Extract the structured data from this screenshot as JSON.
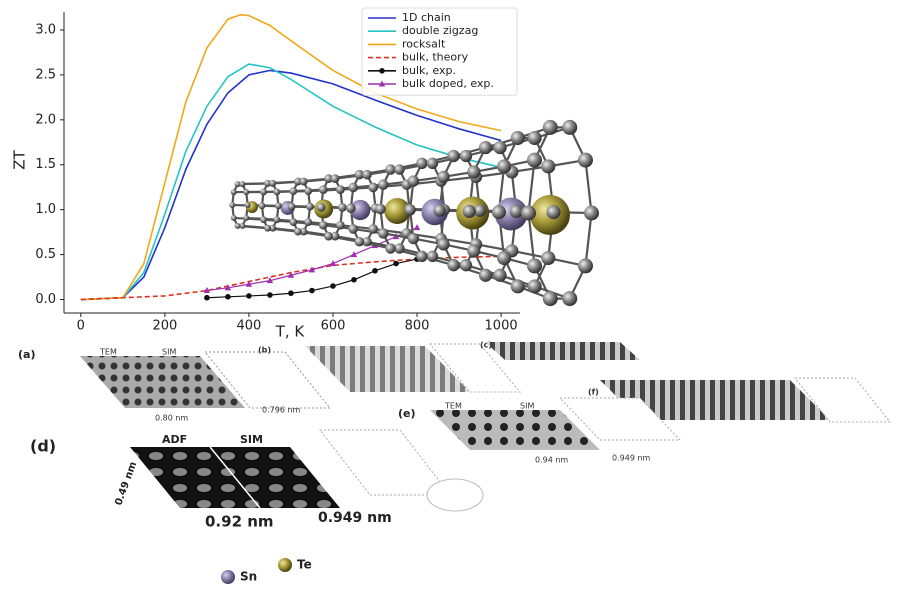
{
  "chart_data": {
    "type": "line",
    "x_label": "T, K",
    "y_label": "ZT",
    "xlim": [
      -40,
      1045
    ],
    "ylim": [
      -0.15,
      3.2
    ],
    "xticks": [
      0,
      200,
      400,
      600,
      800,
      1000
    ],
    "yticks": [
      {
        "value": 0,
        "label": "0.0"
      },
      {
        "value": 0.5,
        "label": "0.5"
      },
      {
        "value": 1,
        "label": "1.0"
      },
      1.5,
      {
        "value": 2,
        "label": "2.0"
      },
      2.5,
      {
        "value": 3,
        "label": "3.0"
      }
    ],
    "legend": "upper center",
    "series": [
      {
        "name": "1D chain",
        "color": "#2233cc",
        "style": "solid",
        "marker": null,
        "x": [
          0,
          100,
          150,
          200,
          250,
          300,
          350,
          400,
          450,
          500,
          600,
          700,
          800,
          900,
          1000
        ],
        "values": [
          0,
          0.02,
          0.25,
          0.8,
          1.45,
          1.95,
          2.3,
          2.5,
          2.55,
          2.52,
          2.4,
          2.22,
          2.05,
          1.9,
          1.77
        ]
      },
      {
        "name": "double zigzag",
        "color": "#22c4c4",
        "style": "solid",
        "marker": null,
        "x": [
          0,
          100,
          150,
          200,
          250,
          300,
          350,
          400,
          450,
          500,
          600,
          700,
          800,
          900,
          1000
        ],
        "values": [
          0,
          0.02,
          0.3,
          0.95,
          1.65,
          2.15,
          2.48,
          2.62,
          2.58,
          2.45,
          2.15,
          1.92,
          1.72,
          1.58,
          1.47
        ]
      },
      {
        "name": "rocksalt",
        "color": "#f0a818",
        "style": "solid",
        "marker": null,
        "x": [
          0,
          100,
          150,
          200,
          250,
          300,
          350,
          380,
          400,
          450,
          500,
          600,
          700,
          800,
          900,
          1000
        ],
        "values": [
          0,
          0.02,
          0.4,
          1.3,
          2.2,
          2.8,
          3.12,
          3.17,
          3.16,
          3.05,
          2.88,
          2.55,
          2.3,
          2.12,
          1.98,
          1.88
        ]
      },
      {
        "name": "bulk, theory",
        "color": "#e03020",
        "style": "dashed",
        "marker": null,
        "x": [
          0,
          200,
          300,
          400,
          500,
          600,
          700,
          800,
          900,
          1000
        ],
        "values": [
          0,
          0.04,
          0.1,
          0.2,
          0.3,
          0.38,
          0.42,
          0.45,
          0.47,
          0.48
        ]
      },
      {
        "name": "bulk, exp.",
        "color": "#111111",
        "style": "solid",
        "marker": "circle",
        "x": [
          300,
          350,
          400,
          450,
          500,
          550,
          600,
          650,
          700,
          750,
          800
        ],
        "values": [
          0.02,
          0.03,
          0.04,
          0.05,
          0.07,
          0.1,
          0.15,
          0.22,
          0.32,
          0.4,
          0.45
        ]
      },
      {
        "name": "bulk doped, exp.",
        "color": "#a030b0",
        "style": "solid",
        "marker": "triangle",
        "x": [
          300,
          350,
          400,
          450,
          500,
          550,
          600,
          650,
          700,
          750,
          800
        ],
        "values": [
          0.1,
          0.13,
          0.17,
          0.21,
          0.27,
          0.33,
          0.4,
          0.5,
          0.6,
          0.7,
          0.8
        ]
      }
    ]
  },
  "panels": {
    "a": {
      "label": "(a)",
      "left": "TEM",
      "right": "SIM",
      "width": "0.80 nm",
      "sim_width": "0.796 nm"
    },
    "b": {
      "label": "(b)"
    },
    "c": {
      "label": "(c)"
    },
    "d": {
      "label": "(d)",
      "left": "ADF",
      "right": "SIM",
      "height": "0.49 nm",
      "width": "0.92 nm",
      "sim_width": "0.949 nm"
    },
    "e": {
      "label": "(e)",
      "left": "TEM",
      "right": "SIM",
      "width": "0.94 nm",
      "sim_width": "0.949 nm"
    },
    "f": {
      "label": "(f)"
    },
    "atoms": {
      "sn": "Sn",
      "te": "Te"
    }
  }
}
